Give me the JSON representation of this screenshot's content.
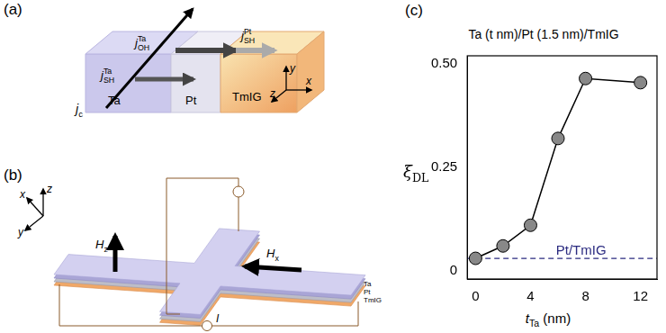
{
  "panels": {
    "a": {
      "label": "(a)",
      "layers": [
        "Ta",
        "Pt",
        "TmIG"
      ],
      "arrows": [
        {
          "base": "j",
          "sub": "c"
        },
        {
          "base": "j",
          "sub": "OH",
          "sup": "Ta"
        },
        {
          "base": "j",
          "sub": "SH",
          "sup": "Pt"
        },
        {
          "base": "j",
          "sub": "SH",
          "sup": "Ta"
        }
      ],
      "axes": [
        "y",
        "z",
        "x"
      ]
    },
    "b": {
      "label": "(b)",
      "layers": [
        "Ta",
        "Pt",
        "TmIG"
      ],
      "fields": [
        {
          "base": "H",
          "sub": "z"
        },
        {
          "base": "H",
          "sub": "x"
        }
      ],
      "current": "I",
      "axes": [
        "x",
        "y",
        "z"
      ]
    }
  },
  "chart_data": {
    "label": "(c)",
    "type": "line",
    "title": "Ta (t nm)/Pt (1.5 nm)/TmIG",
    "x_label": {
      "base": "t",
      "sub": "Ta",
      "text": " (nm)"
    },
    "y_label": {
      "base": "ξ",
      "sub": "DL"
    },
    "x": [
      0,
      2,
      4,
      6,
      8,
      12
    ],
    "values": [
      0.03,
      0.06,
      0.11,
      0.32,
      0.465,
      0.455
    ],
    "color": "#888888",
    "marker": "circle",
    "reference_lines": [
      {
        "text": "Pt/TmIG",
        "value": 0.03,
        "color": "#2b2b80",
        "line_style": "dashed"
      }
    ],
    "xlim": [
      -0.6,
      13.2
    ],
    "xticks": [
      0,
      4,
      8,
      12
    ],
    "ylim": [
      -0.02,
      0.52
    ],
    "yticks": [
      0,
      0.25,
      {
        "value": 0.5,
        "label": "0.50"
      }
    ],
    "grid": false
  }
}
